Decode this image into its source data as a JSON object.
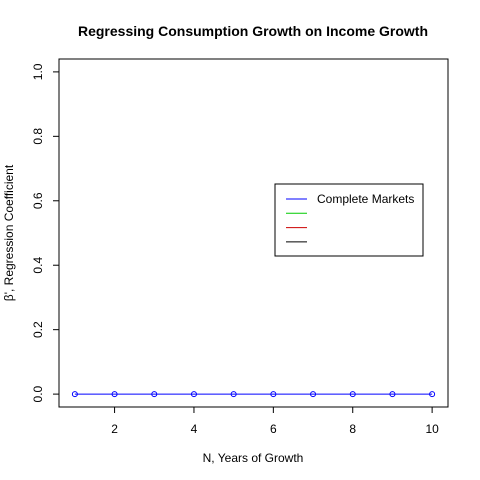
{
  "chart_data": {
    "type": "line",
    "title": "Regressing Consumption Growth on Income Growth",
    "xlabel": "N, Years of Growth",
    "ylabel": "β', Regression Coefficient",
    "xlim": [
      0.6,
      10.4
    ],
    "ylim": [
      -0.04,
      1.04
    ],
    "x_ticks": [
      2,
      4,
      6,
      8,
      10
    ],
    "y_ticks": [
      0.0,
      0.2,
      0.4,
      0.6,
      0.8,
      1.0
    ],
    "y_tick_labels": [
      "0.0",
      "0.2",
      "0.4",
      "0.6",
      "0.8",
      "1.0"
    ],
    "grid": false,
    "legend_position": "right",
    "series": [
      {
        "name": "Complete Markets",
        "color": "#0000ff",
        "marker": "circle",
        "x": [
          1,
          2,
          3,
          4,
          5,
          6,
          7,
          8,
          9,
          10
        ],
        "values": [
          0,
          0,
          0,
          0,
          0,
          0,
          0,
          0,
          0,
          0
        ]
      },
      {
        "name": "",
        "color": "#00cc00",
        "x": [],
        "values": []
      },
      {
        "name": "",
        "color": "#cc0000",
        "x": [],
        "values": []
      },
      {
        "name": "",
        "color": "#000000",
        "x": [],
        "values": []
      }
    ]
  }
}
